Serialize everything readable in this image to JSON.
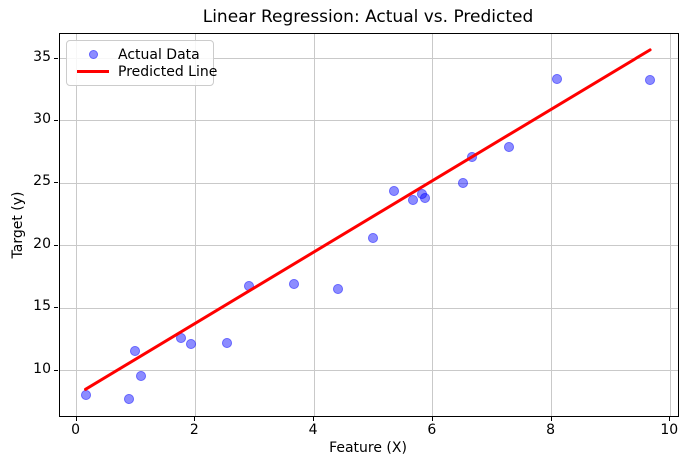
{
  "chart_data": {
    "type": "scatter",
    "title": "Linear Regression: Actual vs. Predicted",
    "xlabel": "Feature (X)",
    "ylabel": "Target (y)",
    "xlim": [
      -0.28,
      10.13
    ],
    "ylim": [
      6.36,
      36.97
    ],
    "xticks": [
      0,
      2,
      4,
      6,
      8,
      10
    ],
    "yticks": [
      10,
      15,
      20,
      25,
      30,
      35
    ],
    "grid": true,
    "grid_color": "#c9c9c9",
    "legend_position": "upper left",
    "series": [
      {
        "name": "Actual Data",
        "type": "scatter",
        "color": "#0000ff",
        "alpha": 0.5,
        "points": [
          [
            0.15,
            8.05
          ],
          [
            0.88,
            7.7
          ],
          [
            0.99,
            11.55
          ],
          [
            1.08,
            9.6
          ],
          [
            1.76,
            12.6
          ],
          [
            1.92,
            12.1
          ],
          [
            2.54,
            12.2
          ],
          [
            2.9,
            16.8
          ],
          [
            3.66,
            16.9
          ],
          [
            4.41,
            16.55
          ],
          [
            5.0,
            20.6
          ],
          [
            5.34,
            24.4
          ],
          [
            5.66,
            23.65
          ],
          [
            5.81,
            24.15
          ],
          [
            5.87,
            23.85
          ],
          [
            6.5,
            25.0
          ],
          [
            6.66,
            27.15
          ],
          [
            7.28,
            27.9
          ],
          [
            8.09,
            33.35
          ],
          [
            9.66,
            33.3
          ]
        ]
      },
      {
        "name": "Predicted Line",
        "type": "line",
        "color": "#ff0000",
        "line_width": 3,
        "x": [
          0.15,
          9.66
        ],
        "y": [
          8.5,
          35.7
        ]
      }
    ]
  }
}
